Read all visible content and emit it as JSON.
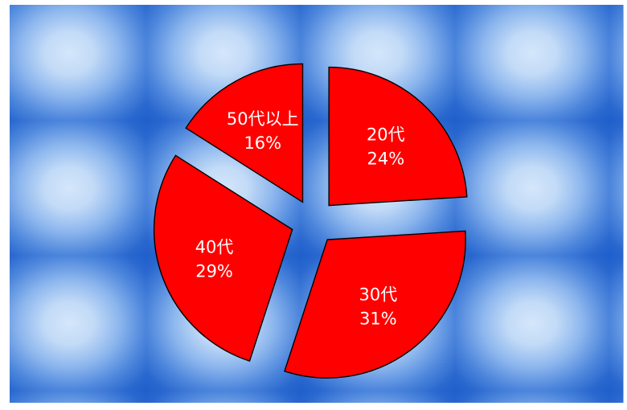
{
  "chart_data": {
    "type": "pie",
    "exploded": true,
    "slice_color": "#ff0000",
    "outline_color": "#000000",
    "label_color": "#ffffff",
    "slices": [
      {
        "label": "20代",
        "value": 24,
        "value_label": "24%"
      },
      {
        "label": "30代",
        "value": 31,
        "value_label": "31%"
      },
      {
        "label": "40代",
        "value": 29,
        "value_label": "29%"
      },
      {
        "label": "50代以上",
        "value": 16,
        "value_label": "16%"
      }
    ]
  }
}
